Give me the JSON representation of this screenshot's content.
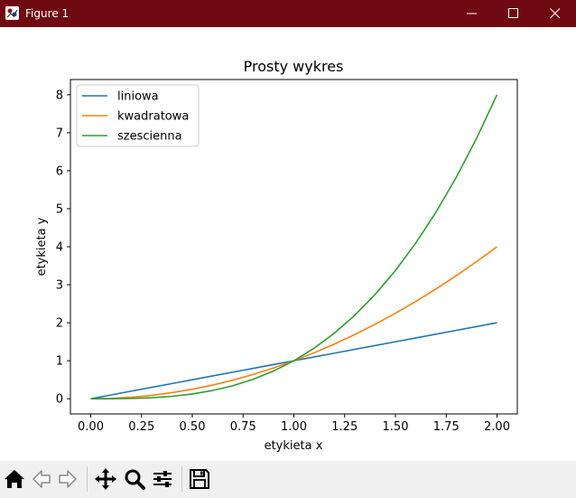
{
  "window": {
    "title": "Figure 1"
  },
  "chart_data": {
    "type": "line",
    "title": "Prosty wykres",
    "xlabel": "etykieta x",
    "ylabel": "etykieta y",
    "xlim": [
      -0.1,
      2.1
    ],
    "ylim": [
      -0.4,
      8.4
    ],
    "x_ticks": [
      0.0,
      0.25,
      0.5,
      0.75,
      1.0,
      1.25,
      1.5,
      1.75,
      2.0
    ],
    "x_tick_labels": [
      "0.00",
      "0.25",
      "0.50",
      "0.75",
      "1.00",
      "1.25",
      "1.50",
      "1.75",
      "2.00"
    ],
    "y_ticks": [
      0,
      1,
      2,
      3,
      4,
      5,
      6,
      7,
      8
    ],
    "y_tick_labels": [
      "0",
      "1",
      "2",
      "3",
      "4",
      "5",
      "6",
      "7",
      "8"
    ],
    "grid": false,
    "legend": "top-left",
    "x": [
      0,
      0.1,
      0.2,
      0.3,
      0.4,
      0.5,
      0.6,
      0.7,
      0.8,
      0.9,
      1.0,
      1.1,
      1.2,
      1.3,
      1.4,
      1.5,
      1.6,
      1.7,
      1.8,
      1.9,
      2.0
    ],
    "series": [
      {
        "name": "liniowa",
        "color": "#1f77b4",
        "values": [
          0,
          0.1,
          0.2,
          0.3,
          0.4,
          0.5,
          0.6,
          0.7,
          0.8,
          0.9,
          1.0,
          1.1,
          1.2,
          1.3,
          1.4,
          1.5,
          1.6,
          1.7,
          1.8,
          1.9,
          2.0
        ]
      },
      {
        "name": "kwadratowa",
        "color": "#ff7f0e",
        "values": [
          0,
          0.01,
          0.04,
          0.09,
          0.16,
          0.25,
          0.36,
          0.49,
          0.64,
          0.81,
          1.0,
          1.21,
          1.44,
          1.69,
          1.96,
          2.25,
          2.56,
          2.89,
          3.24,
          3.61,
          4.0
        ]
      },
      {
        "name": "szescienna",
        "color": "#2ca02c",
        "values": [
          0,
          0.001,
          0.008,
          0.027,
          0.064,
          0.125,
          0.216,
          0.343,
          0.512,
          0.729,
          1.0,
          1.331,
          1.728,
          2.197,
          2.744,
          3.375,
          4.096,
          4.913,
          5.832,
          6.859,
          8.0
        ]
      }
    ]
  },
  "toolbar": {
    "buttons": [
      {
        "name": "home-button",
        "icon": "home-icon"
      },
      {
        "name": "back-button",
        "icon": "arrow-left-icon"
      },
      {
        "name": "forward-button",
        "icon": "arrow-right-icon"
      },
      {
        "name": "pan-button",
        "icon": "move-icon"
      },
      {
        "name": "zoom-button",
        "icon": "magnifier-icon"
      },
      {
        "name": "configure-subplots-button",
        "icon": "sliders-icon"
      },
      {
        "name": "save-button",
        "icon": "floppy-disk-icon"
      }
    ]
  }
}
